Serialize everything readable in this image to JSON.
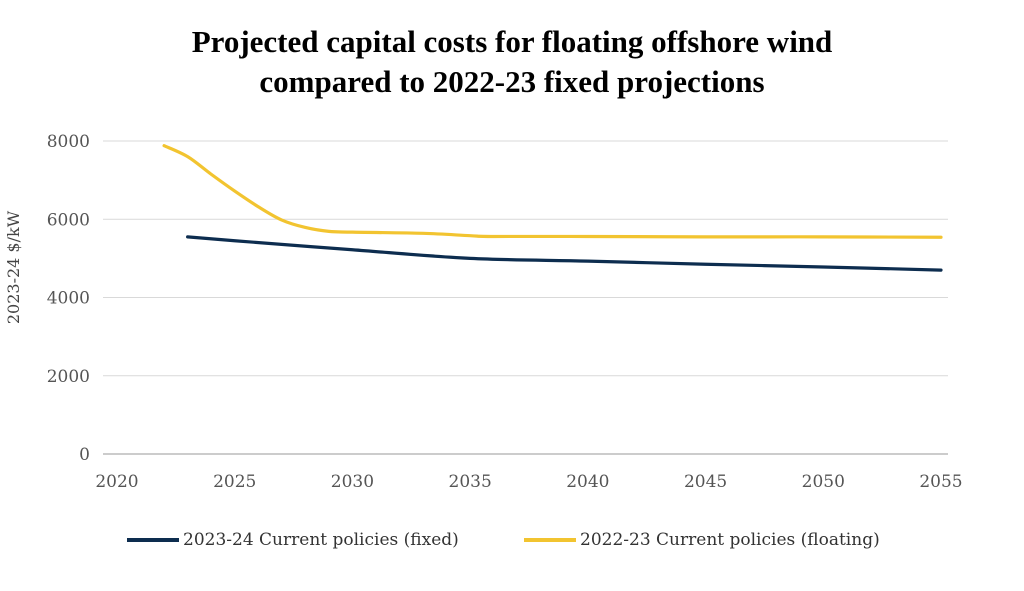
{
  "chart_data": {
    "type": "line",
    "title_lines": [
      "Projected capital costs for floating offshore wind",
      "compared to 2022-23 fixed projections"
    ],
    "xlabel": "",
    "ylabel": "2023-24 $/kW",
    "xlim": [
      2020,
      2055
    ],
    "ylim": [
      0,
      8000
    ],
    "x_ticks": [
      2020,
      2025,
      2030,
      2035,
      2040,
      2045,
      2050,
      2055
    ],
    "y_ticks": [
      0,
      2000,
      4000,
      6000,
      8000
    ],
    "grid": "horizontal",
    "legend_position": "bottom",
    "series": [
      {
        "name": "2023-24 Current policies (fixed)",
        "color": "#0d2d4f",
        "x": [
          2023,
          2025,
          2030,
          2035,
          2040,
          2045,
          2050,
          2055
        ],
        "values": [
          5550,
          5450,
          5220,
          5000,
          4930,
          4850,
          4780,
          4700
        ]
      },
      {
        "name": "2022-23 Current  policies (floating)",
        "color": "#f2c430",
        "x": [
          2022,
          2023,
          2024,
          2025,
          2026,
          2027,
          2028,
          2029,
          2030,
          2033,
          2035,
          2036,
          2040,
          2045,
          2050,
          2055
        ],
        "values": [
          7880,
          7600,
          7150,
          6720,
          6320,
          5980,
          5790,
          5690,
          5670,
          5640,
          5580,
          5560,
          5560,
          5550,
          5550,
          5540
        ]
      }
    ]
  }
}
